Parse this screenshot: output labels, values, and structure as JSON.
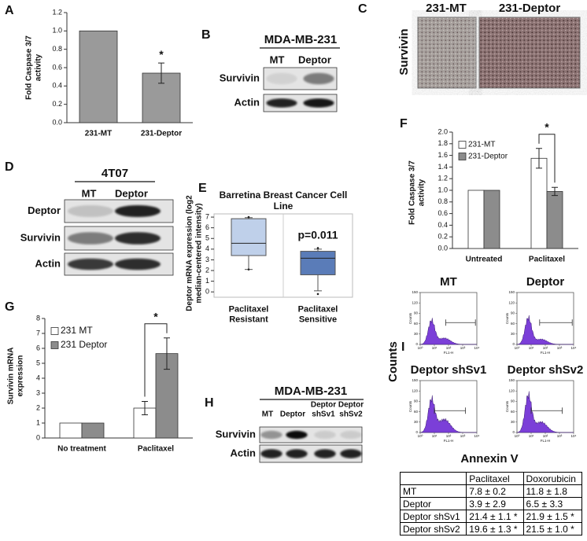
{
  "chart_data": [
    {
      "label": "A",
      "type": "bar",
      "ylabel": "Fold Caspase 3/7 activity",
      "categories": [
        "231-MT",
        "231-Deptor"
      ],
      "values": [
        1.0,
        0.54
      ],
      "errors": [
        null,
        0.11
      ],
      "color": "#9a9a9a",
      "ylim": [
        0,
        1.2
      ],
      "yticks": [
        {
          "value": 0,
          "label": "0.0"
        },
        0.2,
        0.4,
        0.6,
        0.8,
        {
          "value": 1,
          "label": "1.0"
        },
        1.2
      ],
      "annotation": "*"
    },
    {
      "label": "F",
      "type": "bar",
      "ylabel": "Fold Caspase 3/7 activity",
      "categories": [
        "Untreated",
        "Paclitaxel"
      ],
      "series": [
        {
          "name": "231-MT",
          "color": "#ffffff",
          "values": [
            1,
            1.55
          ],
          "errors": [
            null,
            0.17
          ]
        },
        {
          "name": "231-Deptor",
          "color": "#8c8c8c",
          "values": [
            1,
            0.98
          ],
          "errors": [
            null,
            0.07
          ]
        }
      ],
      "ylim": [
        0,
        2
      ],
      "yticks": [
        {
          "value": 0,
          "label": "0.0"
        },
        0.2,
        0.4,
        0.6,
        0.8,
        {
          "value": 1,
          "label": "1.0"
        },
        1.2,
        1.4,
        1.6,
        1.8,
        {
          "value": 2,
          "label": "2.0"
        }
      ],
      "legend": "upper left",
      "annotation": "*"
    },
    {
      "label": "G",
      "type": "bar",
      "ylabel": "Survivin mRNA expression",
      "categories": [
        "No treatment",
        "Paclitaxel"
      ],
      "series": [
        {
          "name": "231 MT",
          "color": "#ffffff",
          "values": [
            1,
            2.0
          ],
          "errors": [
            null,
            0.45
          ]
        },
        {
          "name": "231 Deptor",
          "color": "#8c8c8c",
          "values": [
            1,
            5.65
          ],
          "errors": [
            null,
            1.05
          ]
        }
      ],
      "ylim": [
        0,
        8
      ],
      "yticks": [
        0,
        1,
        2,
        3,
        4,
        5,
        6,
        7,
        8
      ],
      "legend": "upper left",
      "annotation": "*"
    },
    {
      "label": "E",
      "type": "box",
      "title": "Barretina Breast Cancer Cell Line",
      "ylabel": "Deptor mRNA expression (log2 median-centered intensity)",
      "categories": [
        "Paclitaxel Resistant",
        "Paclitaxel Sensitive"
      ],
      "min": [
        2.1,
        0.1
      ],
      "q1": [
        3.4,
        1.6
      ],
      "median": [
        4.55,
        3.15
      ],
      "q3": [
        6.85,
        3.8
      ],
      "max": [
        6.95,
        4.0
      ],
      "outliers": [
        [
          7.0,
          2.1
        ],
        [
          4.1,
          -0.2
        ]
      ],
      "colors": [
        "#bfd0ea",
        "#5a7cb8"
      ],
      "ylim": [
        -0.5,
        7.3
      ],
      "yticks": [
        0,
        1,
        2,
        3,
        4,
        5,
        6,
        7
      ],
      "annotation": "p=0.011"
    }
  ],
  "blots": [
    {
      "label": "B",
      "title": "MDA-MB-231",
      "lanes": [
        "MT",
        "Deptor"
      ],
      "rows": [
        "Survivin",
        "Actin"
      ]
    },
    {
      "label": "D",
      "title": "4T07",
      "lanes": [
        "MT",
        "Deptor"
      ],
      "rows": [
        "Deptor",
        "Survivin",
        "Actin"
      ]
    },
    {
      "label": "H",
      "title": "MDA-MB-231",
      "lanes": [
        "MT",
        "Deptor",
        "Deptor shSv1",
        "Deptor shSv2"
      ],
      "rows": [
        "Survivin",
        "Actin"
      ]
    }
  ],
  "ihc": {
    "label": "C",
    "stain": "Survivin",
    "samples": [
      "231-MT",
      "231-Deptor"
    ]
  },
  "flow": {
    "label": "I",
    "ylabel": "Counts",
    "xlabel": "Annexin V",
    "axis_ylabel": "Counts",
    "axis_xlabel": "FL1-H",
    "titles": [
      "MT",
      "Deptor",
      "Deptor shSv1",
      "Deptor shSv2"
    ],
    "ylim": [
      0,
      150
    ],
    "yticks": [
      0,
      30,
      60,
      90,
      120,
      150
    ],
    "xlog": true,
    "xlim": [
      1,
      10000
    ],
    "xticks": [
      {
        "value": 1,
        "label": "10⁰"
      },
      {
        "value": 10,
        "label": "10¹"
      },
      {
        "value": 100,
        "label": "10²"
      },
      {
        "value": 1000,
        "label": "10³"
      },
      {
        "value": 10000,
        "label": "10⁴"
      }
    ]
  },
  "table": {
    "columns": [
      "Paclitaxel",
      "Doxorubicin"
    ],
    "rows": [
      [
        "MT",
        "7.8 ± 0.2",
        "11.8 ± 1.8"
      ],
      [
        "Deptor",
        "3.9 ± 2.9",
        "6.5 ± 3.3"
      ],
      [
        "Deptor shSv1",
        "21.4 ± 1.1 *",
        "21.9 ± 1.5 *"
      ],
      [
        "Deptor shSv2",
        "19.6 ± 1.3 *",
        "21.5 ± 1.0 *"
      ]
    ]
  }
}
